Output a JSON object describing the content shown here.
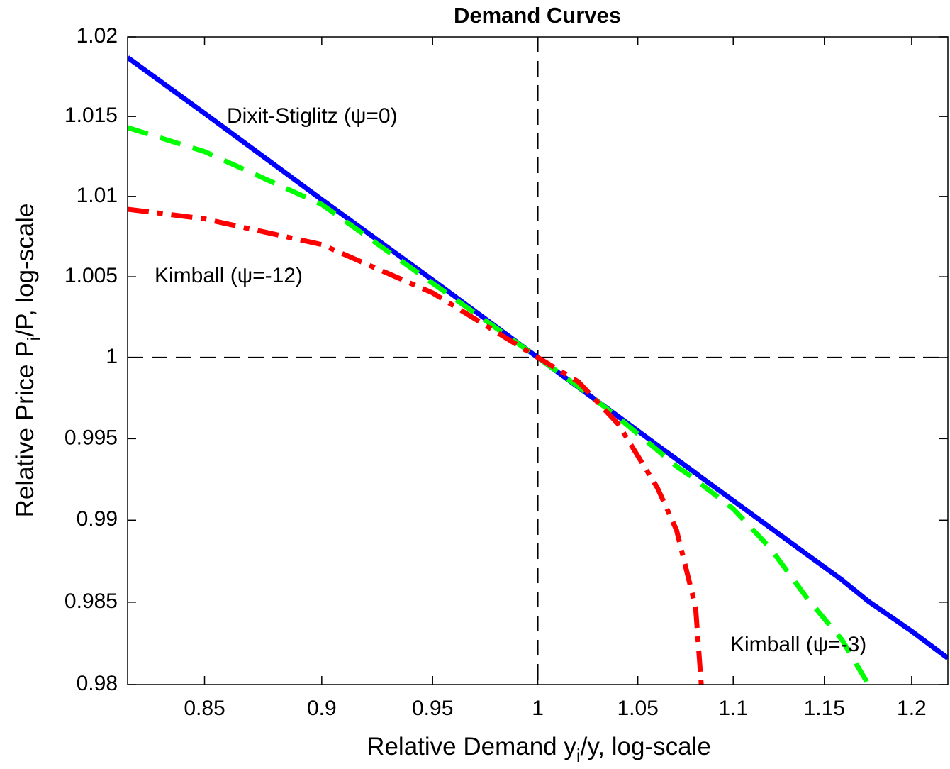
{
  "chart_data": {
    "type": "line",
    "title": "Demand Curves",
    "xlabel": [
      "Relative Demand y",
      "i",
      "/y, log-scale"
    ],
    "ylabel": [
      "Relative Price P",
      "i",
      "/P, log-scale"
    ],
    "xscale": "log",
    "yscale": "log",
    "xlim": [
      0.8187,
      1.2214
    ],
    "ylim": [
      0.98,
      1.02
    ],
    "xticks": [
      0.85,
      0.9,
      0.95,
      1,
      1.05,
      1.1,
      1.15,
      1.2
    ],
    "yticks": [
      0.98,
      0.985,
      0.99,
      0.995,
      1,
      1.005,
      1.01,
      1.015,
      1.02
    ],
    "vlines": [
      1
    ],
    "hlines": [
      1
    ],
    "x": [
      0.8187,
      0.85,
      0.9,
      0.95,
      1,
      1.02,
      1.04,
      1.06,
      1.07,
      1.08,
      1.083,
      1.1,
      1.12,
      1.14,
      1.16,
      1.175,
      1.2,
      1.2214
    ],
    "series": [
      {
        "name": "Dixit-Stiglitz",
        "color": "#0000ff",
        "style": "solid",
        "values": [
          1.0187,
          1.0152,
          1.0098,
          1.0048,
          1,
          0.99816,
          0.99637,
          0.9946,
          0.99374,
          0.99289,
          0.99262,
          0.9912,
          0.98955,
          0.98793,
          0.98635,
          0.98505,
          0.98324,
          0.9816
        ]
      },
      {
        "name": "Kimball psi=-3",
        "color": "#00ff00",
        "style": "dashed",
        "values": [
          1.0143,
          1.0128,
          1.0095,
          1.0046,
          1,
          0.9982,
          0.9963,
          0.9943,
          0.9933,
          0.9925,
          0.9922,
          0.9907,
          0.9883,
          0.9853,
          0.9827,
          0.98,
          null,
          null
        ]
      },
      {
        "name": "Kimball psi=-12",
        "color": "#ff0000",
        "style": "dashdot",
        "values": [
          1.0092,
          1.0086,
          1.007,
          1.004,
          1,
          0.9985,
          0.9959,
          0.992,
          0.9894,
          0.9847,
          0.98,
          null,
          null,
          null,
          null,
          null,
          null,
          null
        ]
      }
    ],
    "annotations": [
      "Dixit-Stiglitz (ψ=0)",
      "Kimball (ψ=-12)",
      "Kimball (ψ=-3)"
    ]
  }
}
